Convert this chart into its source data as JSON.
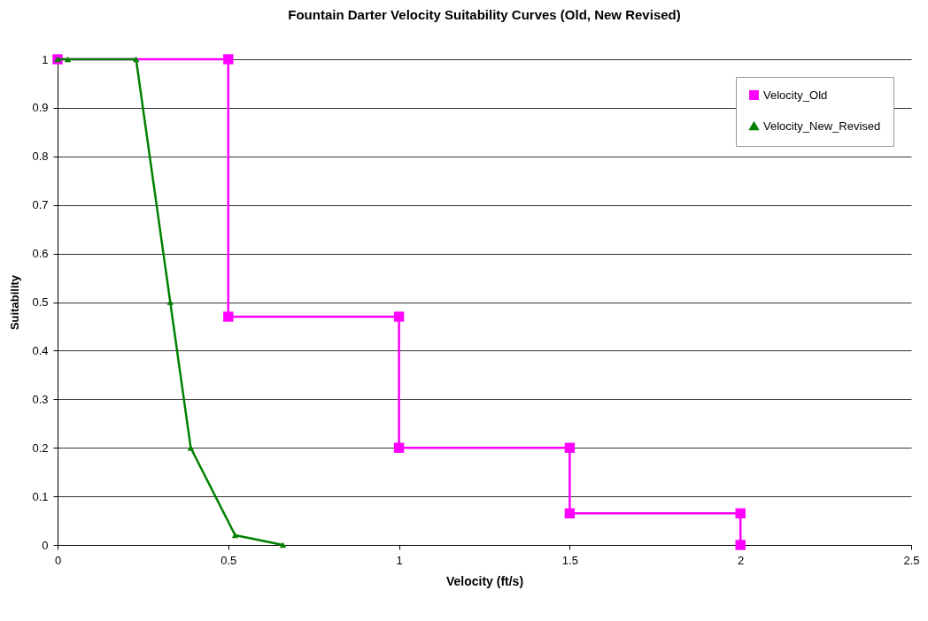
{
  "chart_data": {
    "type": "line",
    "title": "Fountain Darter Velocity Suitability Curves (Old, New Revised)",
    "xlabel": "Velocity (ft/s)",
    "ylabel": "Suitability",
    "series": [
      {
        "name": "Velocity_Old",
        "color": "#ff00ff",
        "marker": "square",
        "x": [
          0,
          0.5,
          0.5,
          1,
          1,
          1.5,
          1.5,
          2,
          2
        ],
        "values": [
          1,
          1,
          0.47,
          0.47,
          0.2,
          0.2,
          0.065,
          0.065,
          0
        ]
      },
      {
        "name": "Velocity_New_Revised",
        "color": "#008000",
        "marker": "triangle",
        "x": [
          0,
          0.03,
          0.23,
          0.33,
          0.39,
          0.52,
          0.66
        ],
        "values": [
          1,
          1,
          1,
          0.5,
          0.2,
          0.02,
          0
        ]
      }
    ],
    "xlim": [
      0,
      2.5
    ],
    "xticks": [
      0,
      0.5,
      1,
      1.5,
      2,
      2.5
    ],
    "ylim": [
      0,
      1
    ],
    "yticks": [
      0,
      0.1,
      0.2,
      0.3,
      0.4,
      0.5,
      0.6,
      0.7,
      0.8,
      0.9,
      1
    ],
    "grid": "y",
    "legend": "top right"
  }
}
